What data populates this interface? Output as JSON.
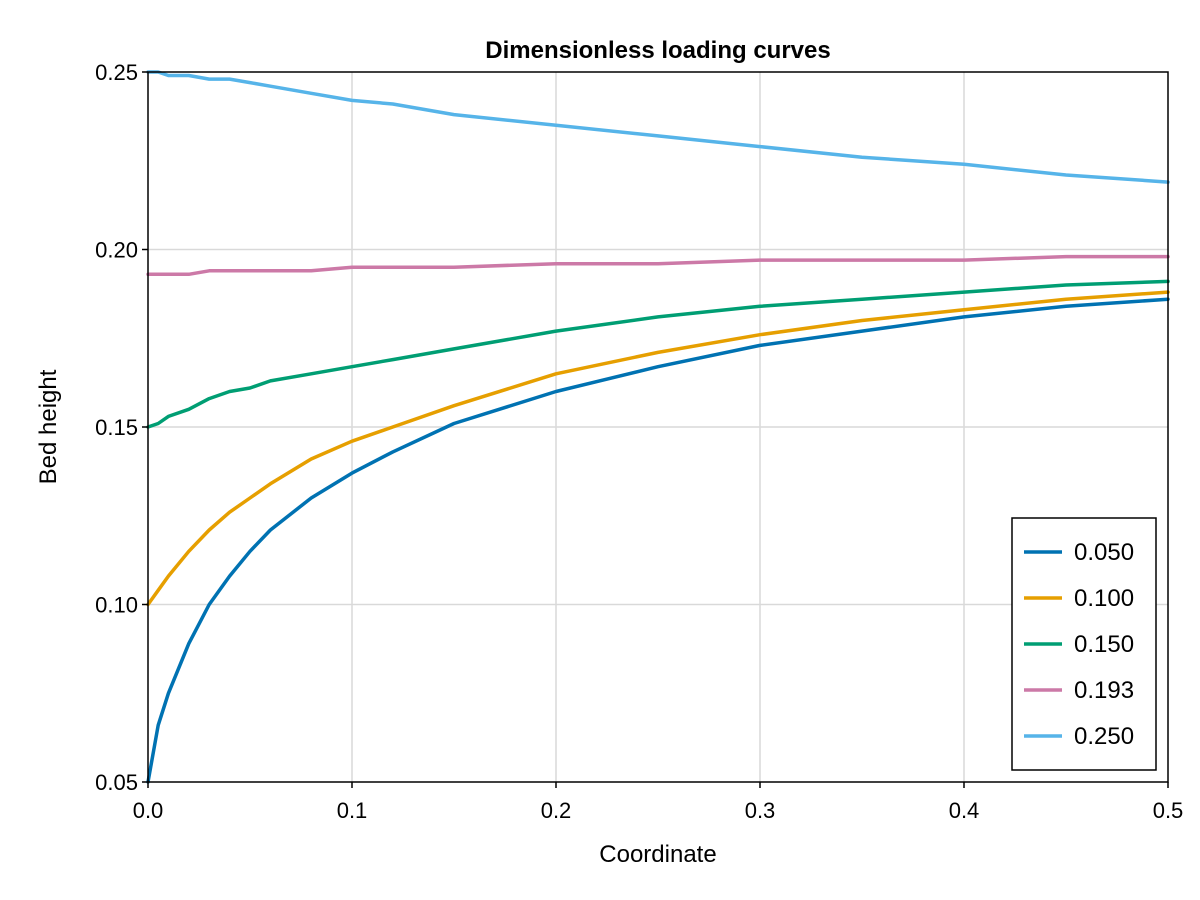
{
  "chart_data": {
    "type": "line",
    "title": "Dimensionless loading curves",
    "xlabel": "Coordinate",
    "ylabel": "Bed height",
    "xlim": [
      0,
      0.5
    ],
    "ylim": [
      0.05,
      0.25
    ],
    "x_ticks": [
      0.0,
      0.1,
      0.2,
      0.3,
      0.4,
      0.5
    ],
    "x_tick_labels": [
      "0.0",
      "0.1",
      "0.2",
      "0.3",
      "0.4",
      "0.5"
    ],
    "y_ticks": [
      0.05,
      0.1,
      0.15,
      0.2,
      0.25
    ],
    "y_tick_labels": [
      "0.05",
      "0.10",
      "0.15",
      "0.20",
      "0.25"
    ],
    "grid": true,
    "legend_position": "bottom-right",
    "x": [
      0.0,
      0.005,
      0.01,
      0.02,
      0.03,
      0.04,
      0.05,
      0.06,
      0.08,
      0.1,
      0.12,
      0.15,
      0.2,
      0.25,
      0.3,
      0.35,
      0.4,
      0.45,
      0.5
    ],
    "series": [
      {
        "name": "0.050",
        "color": "#0072b2",
        "values": [
          0.05,
          0.066,
          0.075,
          0.089,
          0.1,
          0.108,
          0.115,
          0.121,
          0.13,
          0.137,
          0.143,
          0.151,
          0.16,
          0.167,
          0.173,
          0.177,
          0.181,
          0.184,
          0.186
        ]
      },
      {
        "name": "0.100",
        "color": "#e69f00",
        "values": [
          0.1,
          0.104,
          0.108,
          0.115,
          0.121,
          0.126,
          0.13,
          0.134,
          0.141,
          0.146,
          0.15,
          0.156,
          0.165,
          0.171,
          0.176,
          0.18,
          0.183,
          0.186,
          0.188
        ]
      },
      {
        "name": "0.150",
        "color": "#009e73",
        "values": [
          0.15,
          0.151,
          0.153,
          0.155,
          0.158,
          0.16,
          0.161,
          0.163,
          0.165,
          0.167,
          0.169,
          0.172,
          0.177,
          0.181,
          0.184,
          0.186,
          0.188,
          0.19,
          0.191
        ]
      },
      {
        "name": "0.193",
        "color": "#cc79a7",
        "values": [
          0.193,
          0.193,
          0.193,
          0.193,
          0.194,
          0.194,
          0.194,
          0.194,
          0.194,
          0.195,
          0.195,
          0.195,
          0.196,
          0.196,
          0.197,
          0.197,
          0.197,
          0.198,
          0.198
        ]
      },
      {
        "name": "0.250",
        "color": "#56b4e9",
        "values": [
          0.25,
          0.25,
          0.249,
          0.249,
          0.248,
          0.248,
          0.247,
          0.246,
          0.244,
          0.242,
          0.241,
          0.238,
          0.235,
          0.232,
          0.229,
          0.226,
          0.224,
          0.221,
          0.219
        ]
      }
    ]
  }
}
